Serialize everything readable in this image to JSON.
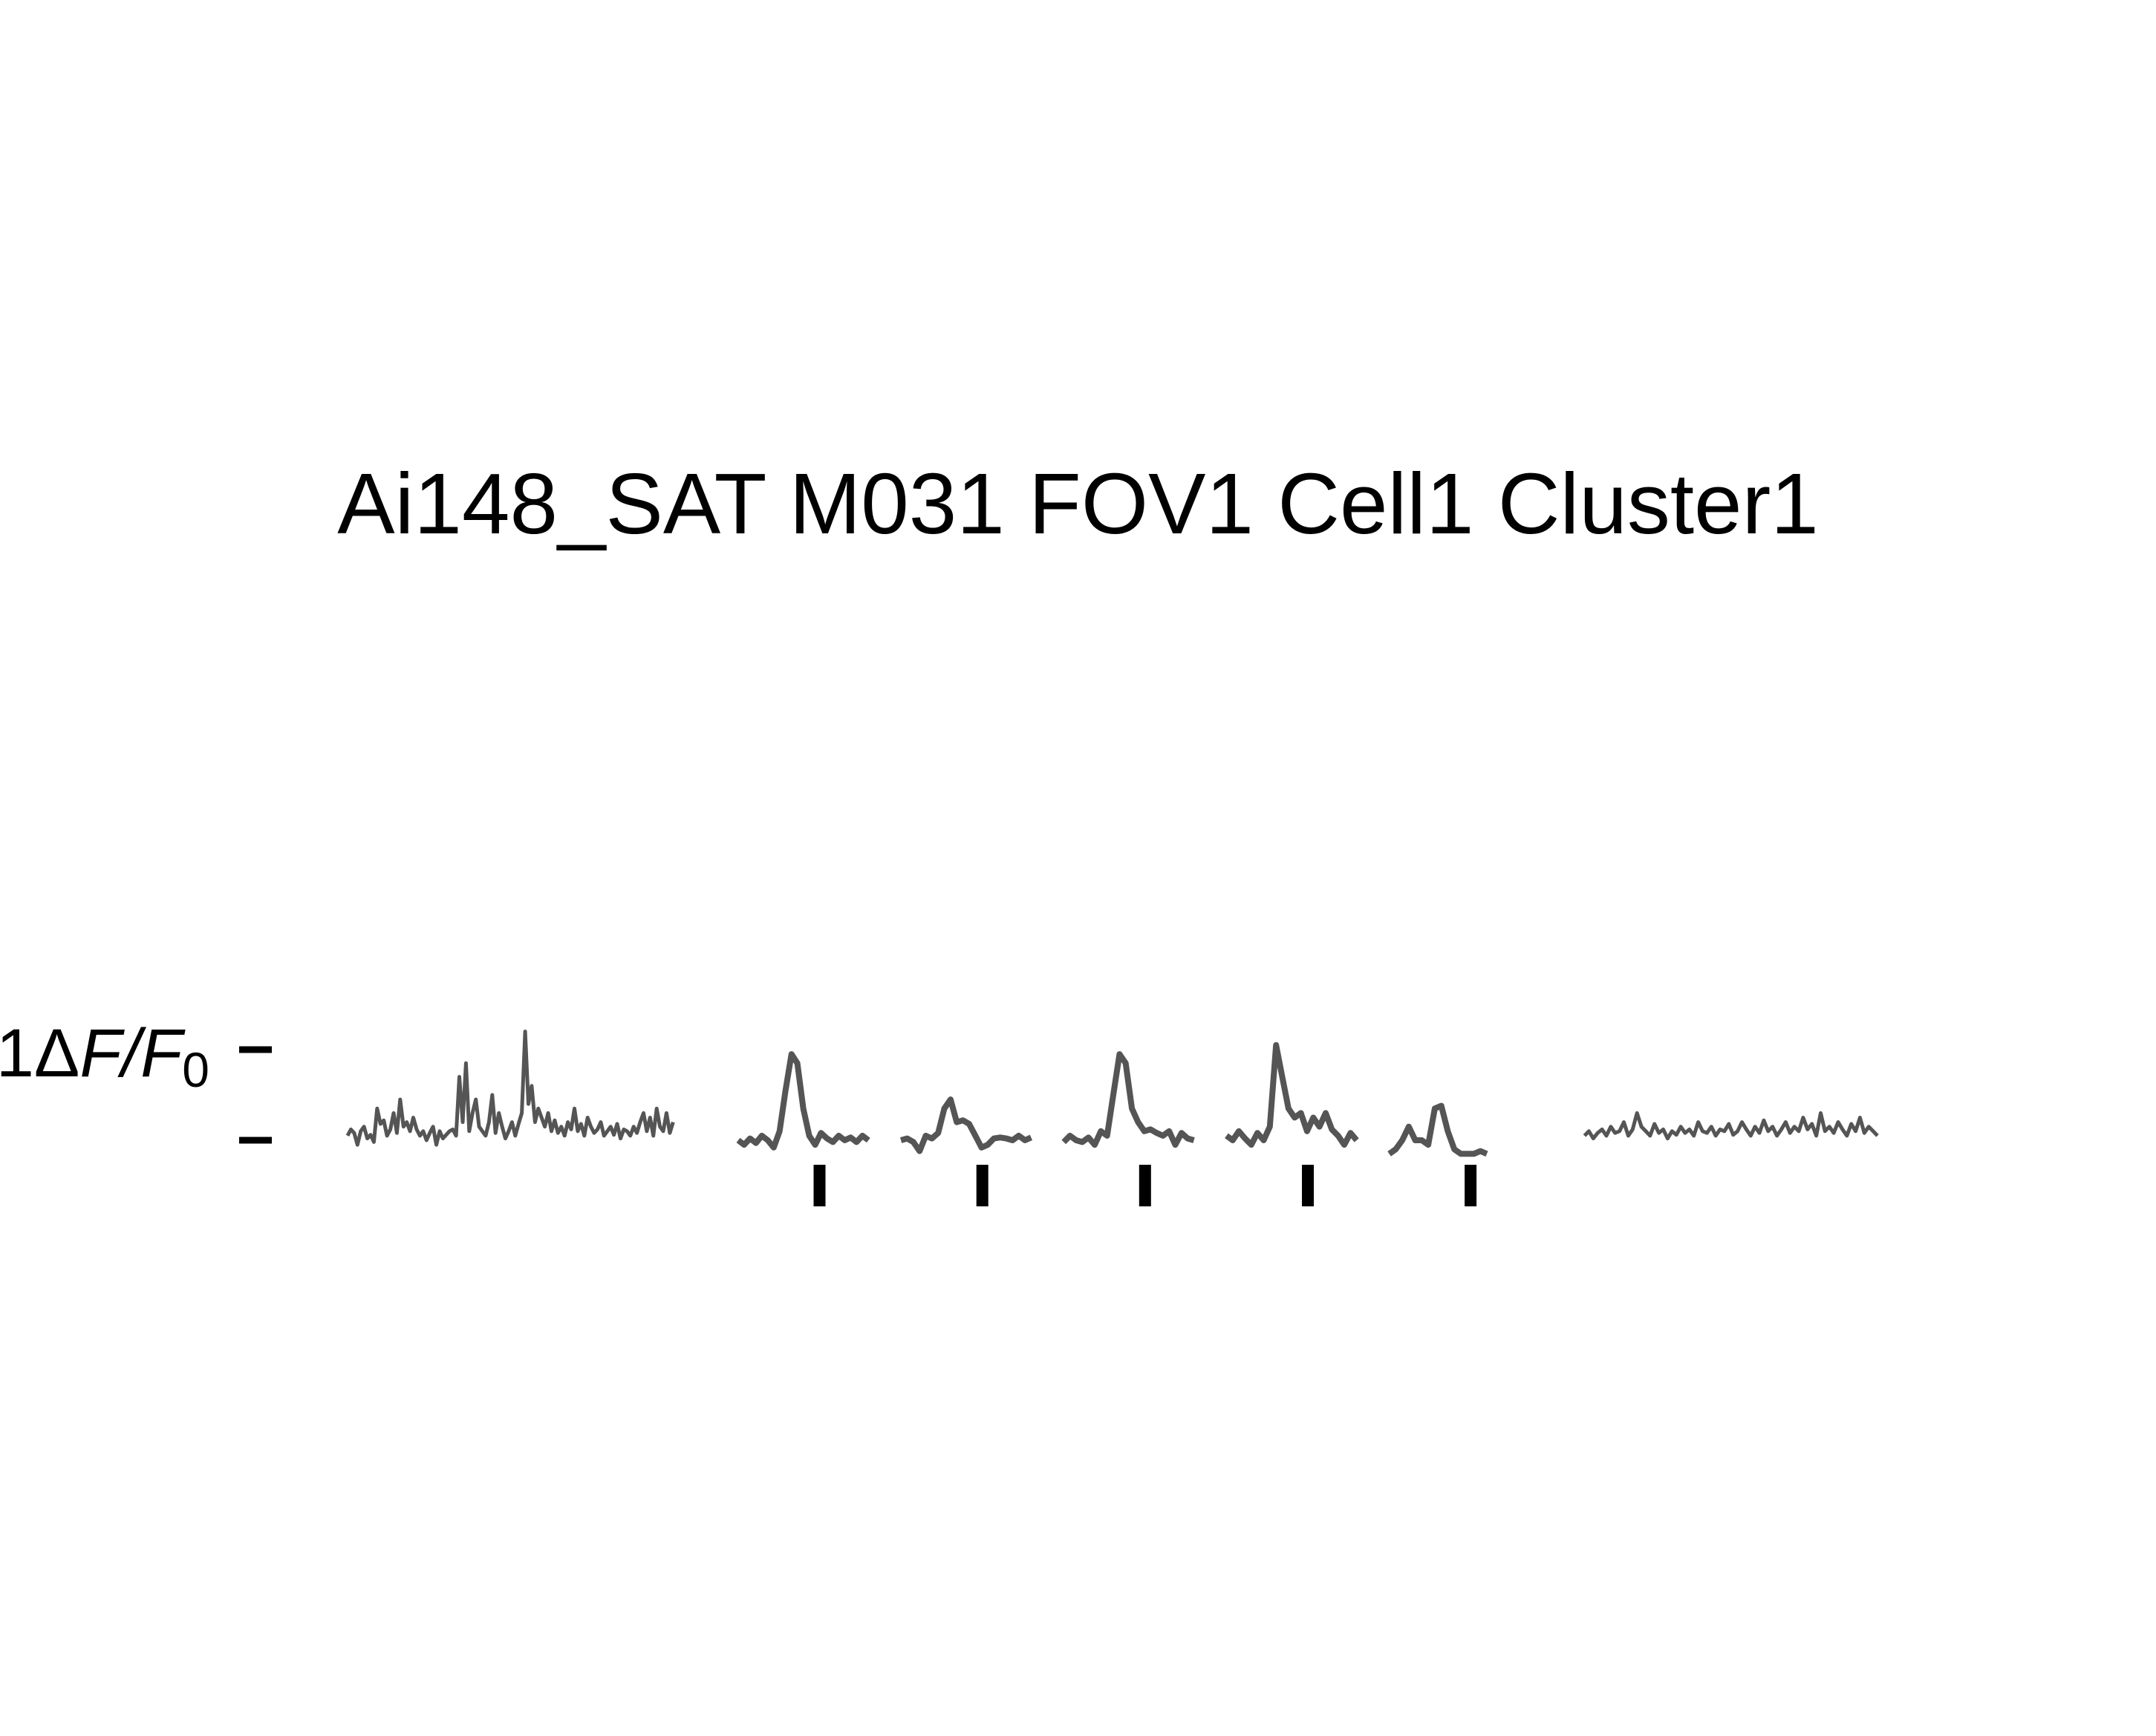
{
  "chart_data": {
    "type": "line",
    "title": "Ai148_SAT M031 FOV1 Cell1 Cluster1",
    "scale_bar": {
      "label_prefix": "1",
      "label_delta": "Δ",
      "label_F": "F",
      "label_slash": "/",
      "label_F0": "F",
      "label_sub": "0",
      "value": 1
    },
    "colors": {
      "trace": "#555555",
      "stimulus": "#000000",
      "scale": "#000000"
    },
    "grid": false,
    "legend": "none",
    "ylim": [
      -0.25,
      1.3
    ],
    "segments": [
      {
        "name": "spontaneous_pre",
        "kind": "noise",
        "x_range": [
          0,
          10
        ],
        "values": [
          0.05,
          0.12,
          0.08,
          -0.05,
          0.1,
          0.15,
          0.02,
          0.06,
          -0.02,
          0.35,
          0.18,
          0.22,
          0.05,
          0.12,
          0.3,
          0.08,
          0.45,
          0.15,
          0.2,
          0.1,
          0.25,
          0.12,
          0.05,
          0.1,
          0.0,
          0.08,
          0.15,
          -0.05,
          0.1,
          0.02,
          0.06,
          0.1,
          0.12,
          0.05,
          0.7,
          0.2,
          0.85,
          0.1,
          0.3,
          0.45,
          0.15,
          0.1,
          0.05,
          0.2,
          0.5,
          0.08,
          0.3,
          0.15,
          0.02,
          0.1,
          0.2,
          0.05,
          0.18,
          0.3,
          1.2,
          0.4,
          0.6,
          0.2,
          0.35,
          0.25,
          0.15,
          0.3,
          0.1,
          0.22,
          0.08,
          0.15,
          0.05,
          0.2,
          0.12,
          0.35,
          0.1,
          0.18,
          0.05,
          0.25,
          0.15,
          0.08,
          0.12,
          0.2,
          0.05,
          0.1,
          0.15,
          0.06,
          0.18,
          0.02,
          0.12,
          0.1,
          0.05,
          0.15,
          0.08,
          0.2,
          0.3,
          0.1,
          0.25,
          0.05,
          0.35,
          0.15,
          0.1,
          0.3,
          0.08,
          0.2
        ]
      },
      {
        "name": "trial_1",
        "kind": "trial",
        "x_range": [
          12,
          16
        ],
        "values": [
          0.0,
          -0.05,
          0.02,
          -0.03,
          0.05,
          0.0,
          -0.08,
          0.1,
          0.55,
          0.95,
          0.85,
          0.35,
          0.05,
          -0.05,
          0.08,
          0.02,
          -0.02,
          0.05,
          0.0,
          0.03,
          -0.02,
          0.05,
          0.0
        ]
      },
      {
        "name": "trial_2",
        "kind": "trial",
        "x_range": [
          17,
          21
        ],
        "values": [
          0.0,
          0.02,
          -0.02,
          -0.12,
          0.05,
          0.02,
          0.08,
          0.35,
          0.45,
          0.2,
          0.22,
          0.18,
          0.05,
          -0.08,
          -0.05,
          0.02,
          0.03,
          0.02,
          0.0,
          0.05,
          0.0,
          0.03
        ]
      },
      {
        "name": "trial_3",
        "kind": "trial",
        "x_range": [
          22,
          26
        ],
        "values": [
          -0.02,
          0.05,
          0.0,
          -0.02,
          0.03,
          -0.05,
          0.1,
          0.05,
          0.5,
          0.95,
          0.85,
          0.35,
          0.2,
          0.1,
          0.12,
          0.08,
          0.05,
          0.1,
          -0.05,
          0.08,
          0.02,
          0.0
        ]
      },
      {
        "name": "trial_4",
        "kind": "trial",
        "x_range": [
          27,
          31
        ],
        "values": [
          0.05,
          0.0,
          0.1,
          0.02,
          -0.05,
          0.08,
          0.0,
          0.15,
          1.05,
          0.7,
          0.35,
          0.25,
          0.3,
          0.1,
          0.25,
          0.15,
          0.3,
          0.12,
          0.05,
          -0.05,
          0.08,
          0.0
        ]
      },
      {
        "name": "trial_5",
        "kind": "trial",
        "x_range": [
          32,
          35
        ],
        "values": [
          -0.15,
          -0.1,
          0.0,
          0.15,
          0.0,
          0.0,
          -0.05,
          0.35,
          0.38,
          0.1,
          -0.1,
          -0.15,
          -0.15,
          -0.15,
          -0.12,
          -0.15
        ]
      },
      {
        "name": "spontaneous_post",
        "kind": "noise",
        "x_range": [
          38,
          47
        ],
        "values": [
          0.05,
          0.1,
          0.02,
          0.08,
          0.12,
          0.05,
          0.15,
          0.08,
          0.1,
          0.2,
          0.05,
          0.12,
          0.3,
          0.15,
          0.1,
          0.05,
          0.18,
          0.08,
          0.12,
          0.02,
          0.1,
          0.06,
          0.15,
          0.08,
          0.12,
          0.05,
          0.2,
          0.1,
          0.08,
          0.15,
          0.05,
          0.12,
          0.1,
          0.18,
          0.06,
          0.1,
          0.2,
          0.12,
          0.05,
          0.15,
          0.08,
          0.22,
          0.1,
          0.15,
          0.05,
          0.12,
          0.2,
          0.08,
          0.15,
          0.1,
          0.25,
          0.12,
          0.18,
          0.05,
          0.3,
          0.1,
          0.15,
          0.08,
          0.2,
          0.12,
          0.05,
          0.18,
          0.1,
          0.25,
          0.08,
          0.15,
          0.1,
          0.05
        ]
      }
    ],
    "stimulus_times": [
      14.5,
      19.5,
      24.5,
      29.5,
      34.5
    ]
  }
}
